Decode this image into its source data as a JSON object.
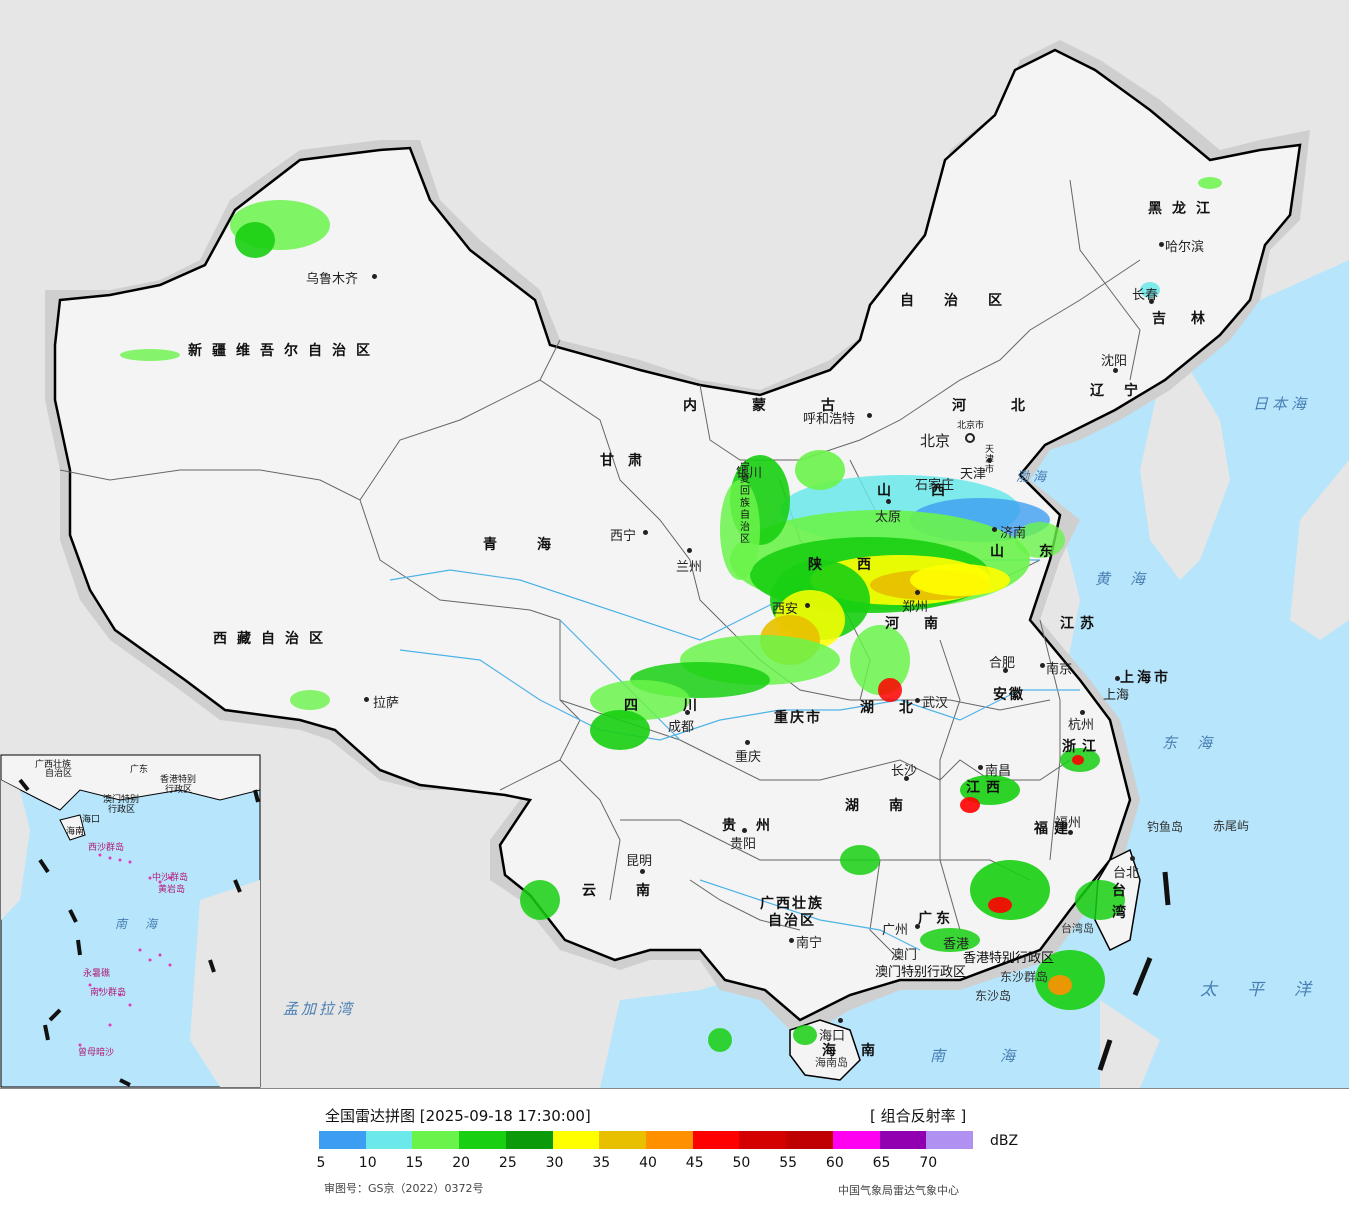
{
  "map": {
    "provinces": [
      {
        "id": "xinjiang",
        "label": "新疆维吾尔自治区"
      },
      {
        "id": "xizang",
        "label": "西藏自治区"
      },
      {
        "id": "qinghai",
        "label": "青海"
      },
      {
        "id": "gansu",
        "label": "甘肃"
      },
      {
        "id": "neimenggu",
        "label": "内蒙古"
      },
      {
        "id": "neimenggu2",
        "label": "自治区"
      },
      {
        "id": "heilongjiang",
        "label": "黑龙江"
      },
      {
        "id": "jilin",
        "label": "吉林"
      },
      {
        "id": "liaoning",
        "label": "辽宁"
      },
      {
        "id": "hebei",
        "label": "河北"
      },
      {
        "id": "shanxi",
        "label": "山西"
      },
      {
        "id": "shandong",
        "label": "山东"
      },
      {
        "id": "henan",
        "label": "河南"
      },
      {
        "id": "shaanxi",
        "label": "陕西"
      },
      {
        "id": "ningxia",
        "label": "宁夏回族自治区"
      },
      {
        "id": "sichuan",
        "label": "四川"
      },
      {
        "id": "chongqing",
        "label": "重庆市"
      },
      {
        "id": "hubei",
        "label": "湖北"
      },
      {
        "id": "hunan",
        "label": "湖南"
      },
      {
        "id": "anhui",
        "label": "安徽"
      },
      {
        "id": "jiangsu",
        "label": "江苏"
      },
      {
        "id": "shanghai",
        "label": "上海市"
      },
      {
        "id": "zhejiang",
        "label": "浙江"
      },
      {
        "id": "jiangxi",
        "label": "江西"
      },
      {
        "id": "fujian",
        "label": "福建"
      },
      {
        "id": "guizhou",
        "label": "贵州"
      },
      {
        "id": "yunnan",
        "label": "云南"
      },
      {
        "id": "guangxi",
        "label": "广西壮族"
      },
      {
        "id": "guangxi2",
        "label": "自治区"
      },
      {
        "id": "guangdong",
        "label": "广东"
      },
      {
        "id": "hainan",
        "label": "海南"
      },
      {
        "id": "taiwan",
        "label": "台湾"
      },
      {
        "id": "xianggang",
        "label": "香港特别行政区"
      },
      {
        "id": "aomen",
        "label": "澳门特别行政区"
      },
      {
        "id": "beijingcity",
        "label": "北京市"
      },
      {
        "id": "tianjincity",
        "label": "天津市"
      }
    ],
    "cities": [
      {
        "id": "wulumuqi",
        "label": "乌鲁木齐"
      },
      {
        "id": "lasa",
        "label": "拉萨"
      },
      {
        "id": "xining",
        "label": "西宁"
      },
      {
        "id": "lanzhou",
        "label": "兰州"
      },
      {
        "id": "yinchuan",
        "label": "银川"
      },
      {
        "id": "huhehaote",
        "label": "呼和浩特"
      },
      {
        "id": "beijing",
        "label": "北京"
      },
      {
        "id": "tianjin",
        "label": "天津"
      },
      {
        "id": "shijiazhuang",
        "label": "石家庄"
      },
      {
        "id": "taiyuan",
        "label": "太原"
      },
      {
        "id": "jinan",
        "label": "济南"
      },
      {
        "id": "zhengzhou",
        "label": "郑州"
      },
      {
        "id": "xian",
        "label": "西安"
      },
      {
        "id": "chengdu",
        "label": "成都"
      },
      {
        "id": "chongqing",
        "label": "重庆"
      },
      {
        "id": "wuhan",
        "label": "武汉"
      },
      {
        "id": "changsha",
        "label": "长沙"
      },
      {
        "id": "nanchang",
        "label": "南昌"
      },
      {
        "id": "hefei",
        "label": "合肥"
      },
      {
        "id": "nanjing",
        "label": "南京"
      },
      {
        "id": "shanghai",
        "label": "上海"
      },
      {
        "id": "hangzhou",
        "label": "杭州"
      },
      {
        "id": "fuzhou",
        "label": "福州"
      },
      {
        "id": "taibei",
        "label": "台北"
      },
      {
        "id": "guiyang",
        "label": "贵阳"
      },
      {
        "id": "kunming",
        "label": "昆明"
      },
      {
        "id": "nanning",
        "label": "南宁"
      },
      {
        "id": "guangzhou",
        "label": "广州"
      },
      {
        "id": "aomen",
        "label": "澳门"
      },
      {
        "id": "xianggang",
        "label": "香港"
      },
      {
        "id": "haikou",
        "label": "海口"
      },
      {
        "id": "haerbin",
        "label": "哈尔滨"
      },
      {
        "id": "changchun",
        "label": "长春"
      },
      {
        "id": "shenyang",
        "label": "沈阳"
      }
    ],
    "seas": [
      {
        "id": "ribenhai",
        "label": "日本海"
      },
      {
        "id": "bohai",
        "label": "渤海"
      },
      {
        "id": "huanghai",
        "label": "黄海"
      },
      {
        "id": "donghai",
        "label": "东海"
      },
      {
        "id": "taipingyang",
        "label": "太平洋"
      },
      {
        "id": "nanhai",
        "label": "南海"
      },
      {
        "id": "mengjialawan",
        "label": "孟加拉湾"
      }
    ],
    "islands": [
      {
        "id": "diaoyudao",
        "label": "钓鱼岛"
      },
      {
        "id": "chiweiyu",
        "label": "赤尾屿"
      },
      {
        "id": "taiwandao",
        "label": "台湾岛"
      },
      {
        "id": "dongshaqundao",
        "label": "东沙群岛"
      },
      {
        "id": "dongshadao",
        "label": "东沙岛"
      },
      {
        "id": "hainandao",
        "label": "海南岛"
      }
    ],
    "inset": {
      "labels": [
        "广西壮族",
        "自治区",
        "广东",
        "香港特别",
        "行政区",
        "澳门特别",
        "行政区",
        "海口",
        "海南",
        "西沙群岛",
        "中沙群岛",
        "黄岩岛",
        "南",
        "海",
        "南沙群岛",
        "永暑礁",
        "曾母暗沙"
      ]
    }
  },
  "legend": {
    "title": "全国雷达拼图 [2025-09-18 17:30:00]",
    "product": "[ 组合反射率 ]",
    "unit": "dBZ",
    "colors": [
      "#3d9df0",
      "#6ae8ea",
      "#6af34a",
      "#18cf12",
      "#0a9a0a",
      "#ffff00",
      "#e8c000",
      "#ff9000",
      "#ff0000",
      "#d40000",
      "#c00000",
      "#ff00f0",
      "#9000b0",
      "#b090f0"
    ],
    "ticks": [
      "5",
      "10",
      "15",
      "20",
      "25",
      "30",
      "35",
      "40",
      "45",
      "50",
      "55",
      "60",
      "65",
      "70"
    ],
    "approval": "审图号：GS京（2022）0372号",
    "source": "中国气象局雷达气象中心"
  }
}
